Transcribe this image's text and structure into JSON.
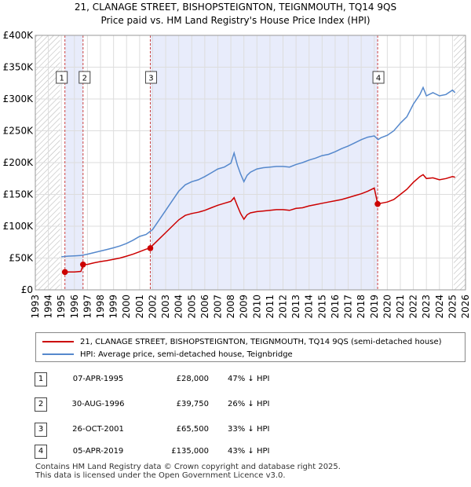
{
  "title": "21, CLANAGE STREET, BISHOPSTEIGNTON, TEIGNMOUTH, TQ14 9QS",
  "subtitle": "Price paid vs. HM Land Registry's House Price Index (HPI)",
  "colors": {
    "property": "#cc0000",
    "hpi": "#5588cc",
    "band": "#e8ecfb",
    "grid": "#dddddd",
    "vline": "#cc4444"
  },
  "chart_data": {
    "type": "line",
    "title": "21, CLANAGE STREET, BISHOPSTEIGNTON, TEIGNMOUTH, TQ14 9QS",
    "xlim": [
      1993,
      2026
    ],
    "ylim": [
      0,
      400000
    ],
    "x_ticks": [
      "1993",
      "1994",
      "1995",
      "1996",
      "1997",
      "1998",
      "1999",
      "2000",
      "2001",
      "2002",
      "2003",
      "2004",
      "2005",
      "2006",
      "2007",
      "2008",
      "2009",
      "2010",
      "2011",
      "2012",
      "2013",
      "2014",
      "2015",
      "2016",
      "2017",
      "2018",
      "2019",
      "2020",
      "2021",
      "2022",
      "2023",
      "2024",
      "2025",
      "2026"
    ],
    "y_ticks": [
      {
        "value": 0,
        "label": "£0"
      },
      {
        "value": 50000,
        "label": "£50K"
      },
      {
        "value": 100000,
        "label": "£100K"
      },
      {
        "value": 150000,
        "label": "£150K"
      },
      {
        "value": 200000,
        "label": "£200K"
      },
      {
        "value": 250000,
        "label": "£250K"
      },
      {
        "value": 300000,
        "label": "£300K"
      },
      {
        "value": 350000,
        "label": "£350K"
      },
      {
        "value": 400000,
        "label": "£400K"
      }
    ],
    "hpi_series": {
      "name": "HPI: Average price, semi-detached house, Teignbridge",
      "x": [
        1995.0,
        1995.5,
        1996.0,
        1996.5,
        1997.0,
        1997.5,
        1998.0,
        1998.5,
        1999.0,
        1999.5,
        2000.0,
        2000.5,
        2001.0,
        2001.5,
        2002.0,
        2002.5,
        2003.0,
        2003.5,
        2004.0,
        2004.5,
        2005.0,
        2005.5,
        2006.0,
        2006.5,
        2007.0,
        2007.5,
        2008.0,
        2008.25,
        2008.5,
        2008.75,
        2009.0,
        2009.25,
        2009.5,
        2010.0,
        2010.5,
        2011.0,
        2011.5,
        2012.0,
        2012.5,
        2013.0,
        2013.5,
        2014.0,
        2014.5,
        2015.0,
        2015.5,
        2016.0,
        2016.5,
        2017.0,
        2017.5,
        2018.0,
        2018.5,
        2019.0,
        2019.3,
        2019.5,
        2020.0,
        2020.5,
        2021.0,
        2021.5,
        2022.0,
        2022.5,
        2022.75,
        2023.0,
        2023.5,
        2024.0,
        2024.5,
        2025.0,
        2025.2
      ],
      "values": [
        52000,
        53000,
        53500,
        54000,
        56000,
        58500,
        61000,
        63500,
        66000,
        69000,
        73000,
        78000,
        84000,
        87000,
        95000,
        110000,
        125000,
        140000,
        155000,
        165000,
        170000,
        173000,
        178000,
        184000,
        190000,
        193000,
        199000,
        215000,
        196000,
        182000,
        170000,
        180000,
        185000,
        190000,
        192000,
        193000,
        194000,
        194000,
        193000,
        197000,
        200000,
        204000,
        207000,
        211000,
        213000,
        217000,
        222000,
        226000,
        231000,
        236000,
        240000,
        242000,
        236000,
        239000,
        243000,
        250000,
        262000,
        272000,
        292000,
        307000,
        318000,
        305000,
        310000,
        305000,
        307000,
        314000,
        310000
      ]
    },
    "property_series": {
      "name": "21, CLANAGE STREET, BISHOPSTEIGNTON, TEIGNMOUTH, TQ14 9QS (semi-detached house)",
      "x": [
        1995.27,
        1995.5,
        1996.0,
        1996.5,
        1996.66,
        1997.0,
        1997.5,
        1998.0,
        1998.5,
        1999.0,
        1999.5,
        2000.0,
        2000.5,
        2001.0,
        2001.5,
        2001.82,
        2002.0,
        2002.5,
        2003.0,
        2003.5,
        2004.0,
        2004.5,
        2005.0,
        2005.5,
        2006.0,
        2006.5,
        2007.0,
        2007.5,
        2008.0,
        2008.25,
        2008.5,
        2008.75,
        2009.0,
        2009.25,
        2009.5,
        2010.0,
        2010.5,
        2011.0,
        2011.5,
        2012.0,
        2012.5,
        2013.0,
        2013.5,
        2014.0,
        2014.5,
        2015.0,
        2015.5,
        2016.0,
        2016.5,
        2017.0,
        2017.5,
        2018.0,
        2018.5,
        2019.0,
        2019.26,
        2019.5,
        2020.0,
        2020.5,
        2021.0,
        2021.5,
        2022.0,
        2022.5,
        2022.75,
        2023.0,
        2023.5,
        2024.0,
        2024.5,
        2025.0,
        2025.2
      ],
      "values": [
        28000,
        28000,
        28000,
        29000,
        39750,
        40000,
        42500,
        44500,
        46000,
        48000,
        50000,
        53000,
        56000,
        60000,
        64000,
        65500,
        70000,
        80000,
        90000,
        100000,
        110000,
        117000,
        120000,
        122000,
        125000,
        129000,
        133000,
        136000,
        139000,
        145000,
        132000,
        120000,
        111000,
        118000,
        121000,
        123000,
        124000,
        125000,
        126000,
        126000,
        125000,
        128000,
        129000,
        132000,
        134000,
        136000,
        138000,
        140000,
        142000,
        145000,
        148000,
        151000,
        155000,
        160000,
        135000,
        136000,
        138000,
        142000,
        150000,
        158000,
        169000,
        178000,
        181000,
        175000,
        176000,
        173000,
        175000,
        178000,
        177000
      ]
    },
    "transactions": [
      {
        "id": "1",
        "date": "07-APR-1995",
        "x": 1995.27,
        "price": 28000,
        "price_label": "£28,000",
        "hpi_label": "47% ↓ HPI"
      },
      {
        "id": "2",
        "date": "30-AUG-1996",
        "x": 1996.66,
        "price": 39750,
        "price_label": "£39,750",
        "hpi_label": "26% ↓ HPI"
      },
      {
        "id": "3",
        "date": "26-OCT-2001",
        "x": 2001.82,
        "price": 65500,
        "price_label": "£65,500",
        "hpi_label": "33% ↓ HPI"
      },
      {
        "id": "4",
        "date": "05-APR-2019",
        "x": 2019.26,
        "price": 135000,
        "price_label": "£135,000",
        "hpi_label": "43% ↓ HPI"
      }
    ],
    "shaded_bands": [
      [
        1995.27,
        1996.66
      ],
      [
        2001.82,
        2019.26
      ]
    ],
    "hatched_regions": [
      [
        1993.0,
        1994.9
      ],
      [
        2025.1,
        2026.0
      ]
    ],
    "legend_position": "bottom"
  },
  "legend": {
    "property_label": "21, CLANAGE STREET, BISHOPSTEIGNTON, TEIGNMOUTH, TQ14 9QS (semi-detached house)",
    "hpi_label": "HPI: Average price, semi-detached house, Teignbridge"
  },
  "footer": {
    "line1": "Contains HM Land Registry data © Crown copyright and database right 2025.",
    "line2": "This data is licensed under the Open Government Licence v3.0."
  }
}
